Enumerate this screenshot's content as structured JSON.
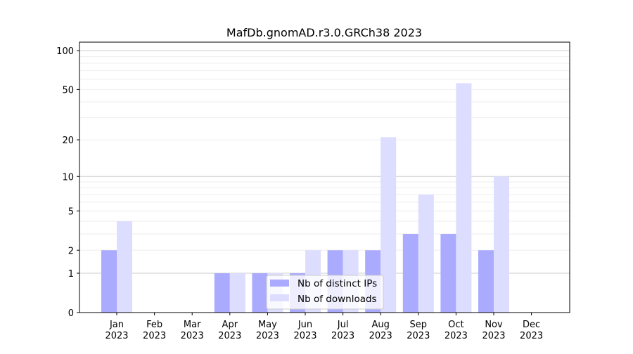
{
  "chart_data": {
    "type": "bar",
    "title": "MafDb.gnomAD.r3.0.GRCh38 2023",
    "xlabel": "",
    "ylabel": "",
    "yscale": "log(1+x)",
    "ylim": [
      0,
      100
    ],
    "yticks": [
      0,
      1,
      2,
      5,
      10,
      20,
      50,
      100
    ],
    "categories": [
      "Jan",
      "Feb",
      "Mar",
      "Apr",
      "May",
      "Jun",
      "Jul",
      "Aug",
      "Sep",
      "Oct",
      "Nov",
      "Dec"
    ],
    "year_label": "2023",
    "series": [
      {
        "name": "Nb of distinct IPs",
        "color": "#aaaaff",
        "values": [
          2,
          0,
          0,
          1,
          1,
          1,
          2,
          2,
          3,
          3,
          2,
          0
        ]
      },
      {
        "name": "Nb of downloads",
        "color": "#ddddff",
        "values": [
          4,
          0,
          0,
          1,
          1,
          2,
          2,
          21,
          7,
          56,
          10,
          0
        ]
      }
    ],
    "legend_position": "lower-center",
    "grid": true
  }
}
